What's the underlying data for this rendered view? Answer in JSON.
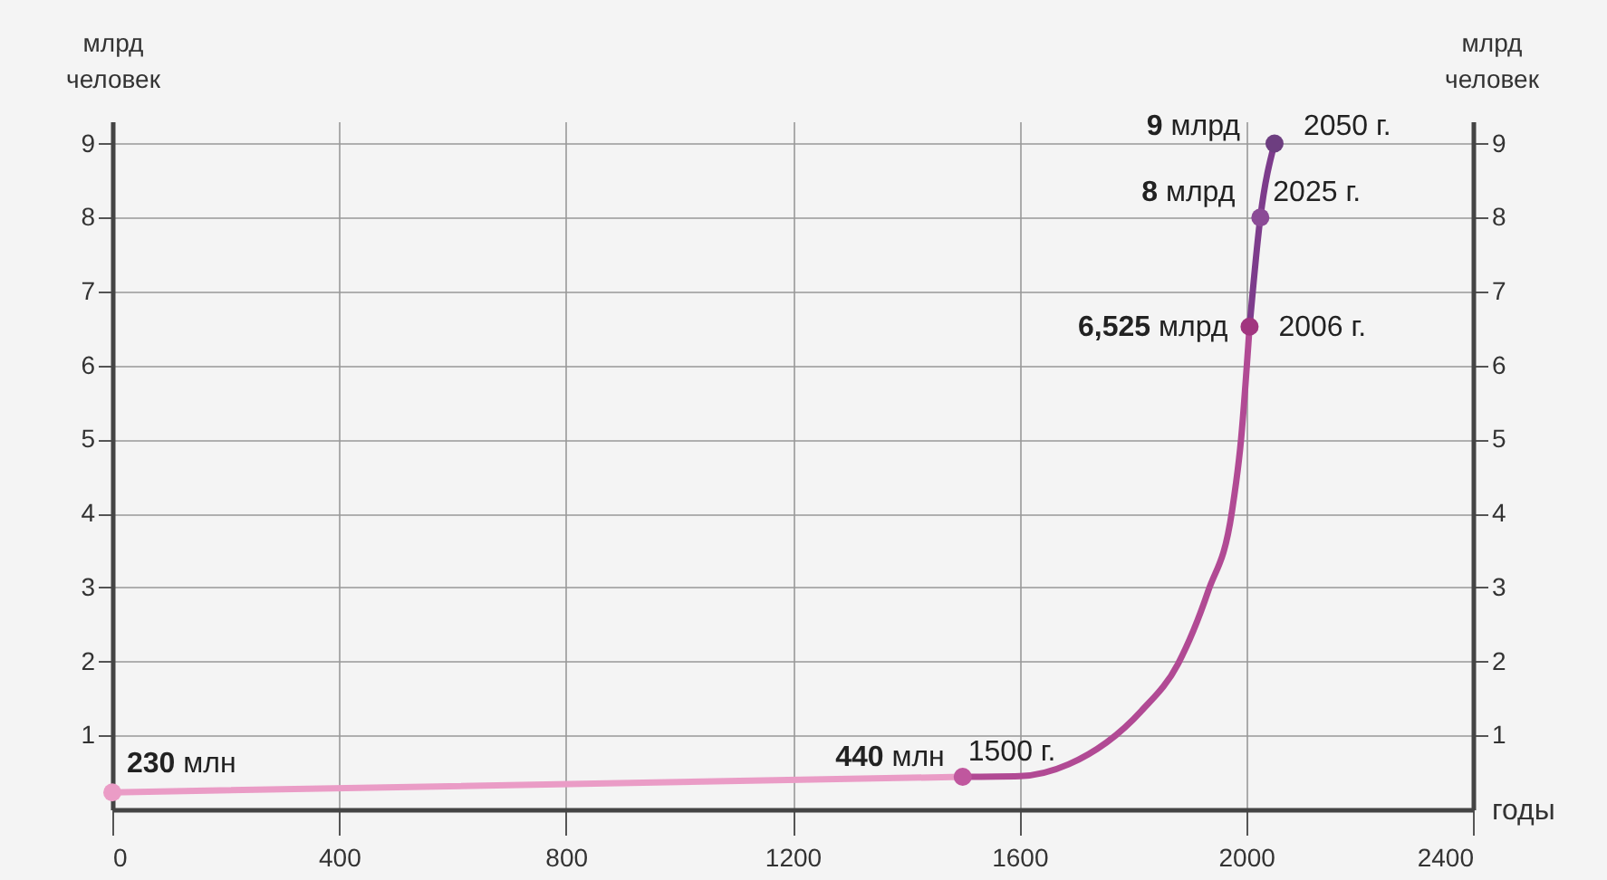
{
  "chart_data": {
    "type": "line",
    "ylabel": "млрд\nчеловек",
    "y2label": "млрд\nчеловек",
    "xlabel": "годы",
    "xlim": [
      0,
      2400
    ],
    "xticks": [
      0,
      400,
      800,
      1200,
      1600,
      2000,
      2400
    ],
    "ylim": [
      0,
      9.3
    ],
    "yticks": [
      1,
      2,
      3,
      4,
      5,
      6,
      7,
      8,
      9
    ],
    "y2lim": [
      0,
      9.3
    ],
    "y2ticks": [
      1,
      2,
      3,
      4,
      5,
      6,
      7,
      8,
      9
    ],
    "grid": true,
    "line_style": "solid",
    "series": [
      {
        "color": "#ea9cc6",
        "x": [
          0,
          1500
        ],
        "values": [
          0.23,
          0.44
        ]
      },
      {
        "color": "#b14a94",
        "x": [
          1500,
          1601,
          1687,
          1815,
          1880,
          1933,
          1975,
          1991,
          2006
        ],
        "values": [
          0.44,
          0.45,
          0.61,
          1.33,
          1.97,
          2.95,
          4.03,
          5,
          6.525
        ]
      },
      {
        "color": "#7d3c8c",
        "x": [
          2006,
          2025,
          2050
        ],
        "values": [
          6.525,
          8,
          9
        ]
      },
      {
        "type": "scatter",
        "marker": "circle",
        "colors": [
          "#eb9cc6",
          "#c0579e",
          "#a1357f",
          "#8b4a96",
          "#6d3e80"
        ],
        "x": [
          0,
          1500,
          2006,
          2025,
          2050
        ],
        "values": [
          0.23,
          0.44,
          6.525,
          8,
          9
        ]
      }
    ],
    "annotations": [
      {
        "text": "230 млн",
        "x": 0,
        "y": 0.23
      },
      {
        "text": "440 млн",
        "x": 1500,
        "y": 0.44
      },
      {
        "text": "1500 г.",
        "x": 1500,
        "y": 0.44
      },
      {
        "text": "6,525 млрд",
        "x": 2006,
        "y": 6.525
      },
      {
        "text": "2006 г.",
        "x": 2006,
        "y": 6.525
      },
      {
        "text": "8 млрд",
        "x": 2025,
        "y": 8
      },
      {
        "text": "2025 г.",
        "x": 2025,
        "y": 8
      },
      {
        "text": "9 млрд",
        "x": 2050,
        "y": 9
      },
      {
        "text": "2050 г.",
        "x": 2050,
        "y": 9
      }
    ]
  }
}
